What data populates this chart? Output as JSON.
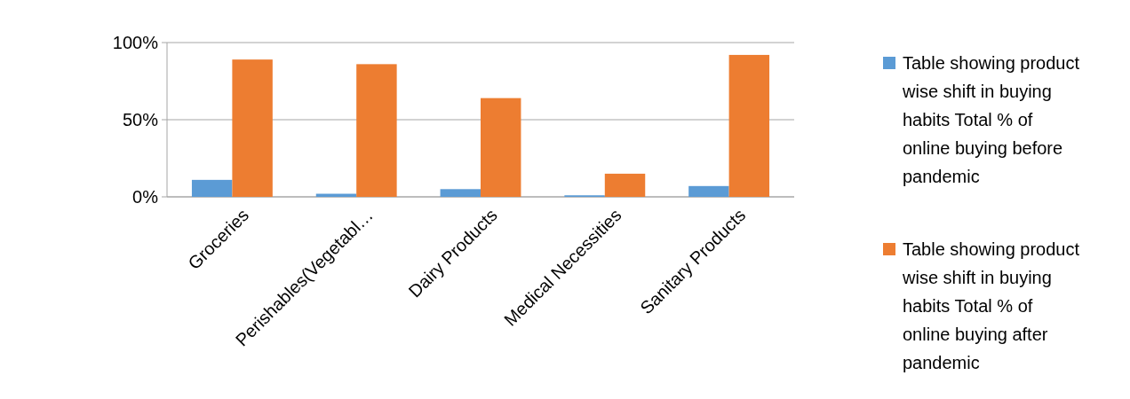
{
  "chart_data": {
    "type": "bar",
    "categories": [
      "Groceries",
      "Perishables(Vegetabl…",
      "Dairy Products",
      "Medical Necessities",
      "Sanitary Products"
    ],
    "series": [
      {
        "name": "Table showing product wise shift in buying habits Total % of online buying before pandemic",
        "color": "#5b9bd5",
        "values": [
          11,
          2,
          5,
          1,
          7
        ]
      },
      {
        "name": "Table showing product wise shift in buying habits Total % of online buying after pandemic",
        "color": "#ed7d31",
        "values": [
          89,
          86,
          64,
          15,
          92
        ]
      }
    ],
    "ylim": [
      0,
      100
    ],
    "yticks": [
      {
        "value": 0,
        "label": "0%"
      },
      {
        "value": 50,
        "label": "50%"
      },
      {
        "value": 100,
        "label": "100%"
      }
    ],
    "grid": "y",
    "legend": "right"
  }
}
